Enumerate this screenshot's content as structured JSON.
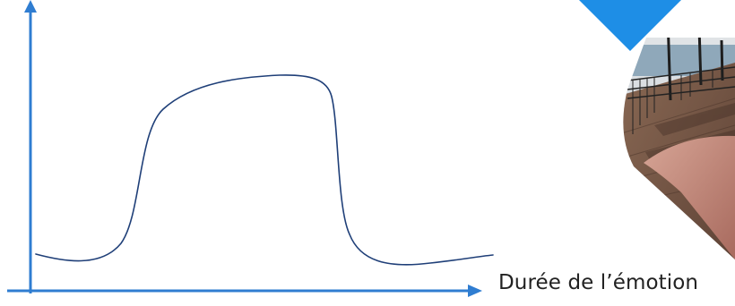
{
  "diagram": {
    "x_axis_label": "Durée de l’émotion",
    "colors": {
      "axis": "#2f7dd1",
      "curve": "#1f3f78",
      "accent_triangle": "#1e8ee6",
      "photo_sky": "#d9dde2",
      "photo_water": "#8aa5b8",
      "photo_boardwalk": "#7a5845",
      "photo_railing": "#1e1e1e",
      "photo_hand": "#c98f7f"
    }
  }
}
